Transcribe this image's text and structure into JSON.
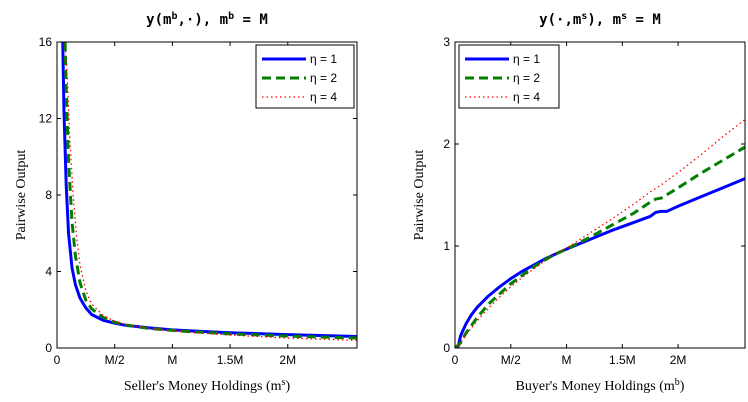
{
  "chart_data": [
    {
      "type": "line",
      "title": "y(m^b,·), m^b = M",
      "xlabel": "Seller's Money Holdings (m^s)",
      "ylabel": "Pairwise Output",
      "xlim": [
        0,
        2.6
      ],
      "ylim": [
        0,
        16
      ],
      "xticks": [
        0,
        0.5,
        1,
        1.5,
        2
      ],
      "xtick_labels": [
        "0",
        "M/2",
        "M",
        "1.5M",
        "2M"
      ],
      "yticks": [
        0,
        4,
        8,
        12,
        16
      ],
      "ytick_labels": [
        "0",
        "4",
        "8",
        "12",
        "16"
      ],
      "grid": false,
      "legend_position": "top-right",
      "series": [
        {
          "name": "η = 1",
          "color": "#0000ff",
          "style": "solid",
          "x": [
            0.05,
            0.06,
            0.08,
            0.1,
            0.13,
            0.16,
            0.2,
            0.25,
            0.3,
            0.4,
            0.5,
            0.6,
            0.8,
            1.0,
            1.2,
            1.5,
            2.0,
            2.6
          ],
          "y": [
            16,
            12.5,
            8.5,
            6.0,
            4.2,
            3.3,
            2.6,
            2.1,
            1.75,
            1.45,
            1.3,
            1.18,
            1.05,
            0.95,
            0.88,
            0.8,
            0.7,
            0.6
          ]
        },
        {
          "name": "η = 2",
          "color": "#007f00",
          "style": "dashed",
          "x": [
            0.07,
            0.08,
            0.1,
            0.13,
            0.16,
            0.2,
            0.25,
            0.3,
            0.4,
            0.5,
            0.6,
            0.8,
            1.0,
            1.2,
            1.5,
            2.0,
            2.6
          ],
          "y": [
            16,
            13.5,
            9.8,
            6.6,
            4.8,
            3.4,
            2.5,
            2.05,
            1.6,
            1.35,
            1.2,
            1.02,
            0.92,
            0.84,
            0.74,
            0.62,
            0.52
          ]
        },
        {
          "name": "η = 4",
          "color": "#ff0000",
          "style": "dotted",
          "x": [
            0.07,
            0.09,
            0.11,
            0.14,
            0.17,
            0.2,
            0.25,
            0.3,
            0.4,
            0.5,
            0.6,
            0.8,
            1.0,
            1.2,
            1.5,
            2.0,
            2.6
          ],
          "y": [
            16,
            14.0,
            11.0,
            8.0,
            5.8,
            4.3,
            3.0,
            2.3,
            1.7,
            1.4,
            1.22,
            1.02,
            0.9,
            0.8,
            0.68,
            0.52,
            0.4
          ]
        }
      ]
    },
    {
      "type": "line",
      "title": "y(·,m^s), m^s = M",
      "xlabel": "Buyer's Money Holdings (m^b)",
      "ylabel": "Pairwise Output",
      "xlim": [
        0,
        2.6
      ],
      "ylim": [
        0,
        3
      ],
      "xticks": [
        0,
        0.5,
        1,
        1.5,
        2
      ],
      "xtick_labels": [
        "0",
        "M/2",
        "M",
        "1.5M",
        "2M"
      ],
      "yticks": [
        0,
        1,
        2,
        3
      ],
      "ytick_labels": [
        "0",
        "1",
        "2",
        "3"
      ],
      "grid": false,
      "legend_position": "top-left",
      "series": [
        {
          "name": "η = 1",
          "color": "#0000ff",
          "style": "solid",
          "x": [
            0.0,
            0.03,
            0.05,
            0.1,
            0.15,
            0.2,
            0.3,
            0.4,
            0.5,
            0.6,
            0.7,
            0.8,
            0.9,
            1.0,
            1.2,
            1.4,
            1.6,
            1.75,
            1.8,
            1.85,
            1.9,
            2.0,
            2.2,
            2.4,
            2.6
          ],
          "y": [
            0.0,
            0.02,
            0.12,
            0.24,
            0.33,
            0.4,
            0.51,
            0.6,
            0.68,
            0.75,
            0.81,
            0.87,
            0.92,
            0.97,
            1.06,
            1.15,
            1.23,
            1.29,
            1.33,
            1.34,
            1.34,
            1.39,
            1.48,
            1.57,
            1.66
          ]
        },
        {
          "name": "η = 2",
          "color": "#007f00",
          "style": "dashed",
          "x": [
            0.0,
            0.05,
            0.1,
            0.2,
            0.3,
            0.4,
            0.5,
            0.6,
            0.7,
            0.8,
            0.9,
            1.0,
            1.2,
            1.4,
            1.6,
            1.75,
            1.8,
            1.85,
            2.0,
            2.2,
            2.4,
            2.6
          ],
          "y": [
            0.0,
            0.05,
            0.15,
            0.3,
            0.43,
            0.53,
            0.63,
            0.71,
            0.79,
            0.86,
            0.92,
            0.97,
            1.08,
            1.2,
            1.32,
            1.43,
            1.46,
            1.47,
            1.57,
            1.71,
            1.84,
            1.97
          ]
        },
        {
          "name": "η = 4",
          "color": "#ff0000",
          "style": "dotted",
          "x": [
            0.0,
            0.05,
            0.1,
            0.2,
            0.3,
            0.4,
            0.5,
            0.6,
            0.7,
            0.8,
            0.9,
            1.0,
            1.2,
            1.4,
            1.6,
            1.75,
            1.85,
            2.0,
            2.2,
            2.4,
            2.6
          ],
          "y": [
            0.0,
            0.05,
            0.13,
            0.27,
            0.39,
            0.5,
            0.6,
            0.69,
            0.77,
            0.85,
            0.92,
            0.98,
            1.12,
            1.26,
            1.41,
            1.53,
            1.6,
            1.72,
            1.89,
            2.07,
            2.24
          ]
        }
      ]
    }
  ]
}
